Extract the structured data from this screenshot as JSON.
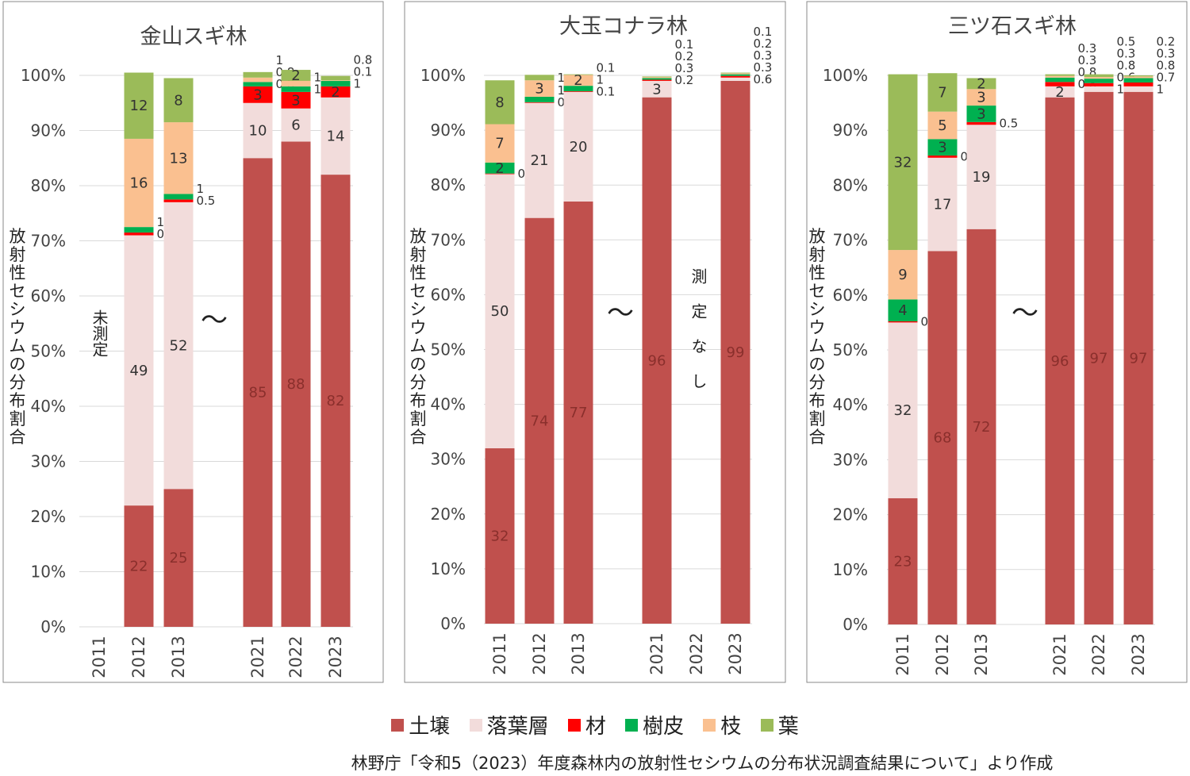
{
  "chart_data": [
    {
      "type": "bar",
      "stacked": true,
      "title": "金山スギ林",
      "ylabel": "放射性セシウムの分布割合",
      "ylim": [
        0,
        100
      ],
      "yticks": [
        "0%",
        "10%",
        "20%",
        "30%",
        "40%",
        "50%",
        "60%",
        "70%",
        "80%",
        "90%",
        "100%"
      ],
      "categories": [
        "2011",
        "2012",
        "2013",
        "2021",
        "2022",
        "2023"
      ],
      "gap_marker": "〜",
      "annotation": "未測定",
      "annotation_category": "2011",
      "series": [
        {
          "name": "土壌",
          "values": [
            null,
            22,
            25,
            85,
            88,
            82
          ]
        },
        {
          "name": "落葉層",
          "values": [
            null,
            49,
            52,
            10,
            6,
            14
          ]
        },
        {
          "name": "材",
          "values": [
            null,
            0.5,
            0.5,
            3,
            3,
            2
          ]
        },
        {
          "name": "樹皮",
          "values": [
            null,
            1,
            1,
            0.8,
            1,
            1
          ]
        },
        {
          "name": "枝",
          "values": [
            null,
            16,
            13,
            0.8,
            1,
            0.1
          ]
        },
        {
          "name": "葉",
          "values": [
            null,
            12,
            8,
            1,
            2,
            0.8
          ]
        }
      ]
    },
    {
      "type": "bar",
      "stacked": true,
      "title": "大玉コナラ林",
      "ylabel": "放射性セシウムの分布割合",
      "ylim": [
        0,
        100
      ],
      "yticks": [
        "0%",
        "10%",
        "20%",
        "30%",
        "40%",
        "50%",
        "60%",
        "70%",
        "80%",
        "90%",
        "100%"
      ],
      "categories": [
        "2011",
        "2012",
        "2013",
        "2021",
        "2022",
        "2023"
      ],
      "gap_marker": "〜",
      "annotation": "測定なし",
      "annotation_category": "2022",
      "series": [
        {
          "name": "土壌",
          "values": [
            32,
            74,
            77,
            96,
            null,
            99
          ]
        },
        {
          "name": "落葉層",
          "values": [
            50,
            21,
            20,
            3,
            null,
            0.6
          ]
        },
        {
          "name": "材",
          "values": [
            0.1,
            0.1,
            0.1,
            0.2,
            null,
            0.3
          ]
        },
        {
          "name": "樹皮",
          "values": [
            2,
            1,
            1,
            0.3,
            null,
            0.3
          ]
        },
        {
          "name": "枝",
          "values": [
            7,
            3,
            2,
            0.2,
            null,
            0.2
          ]
        },
        {
          "name": "葉",
          "values": [
            8,
            1,
            0.1,
            0.1,
            null,
            0.1
          ]
        }
      ]
    },
    {
      "type": "bar",
      "stacked": true,
      "title": "三ツ石スギ林",
      "ylabel": "放射性セシウムの分布割合",
      "ylim": [
        0,
        100
      ],
      "yticks": [
        "0%",
        "10%",
        "20%",
        "30%",
        "40%",
        "50%",
        "60%",
        "70%",
        "80%",
        "90%",
        "100%"
      ],
      "categories": [
        "2011",
        "2012",
        "2013",
        "2021",
        "2022",
        "2023"
      ],
      "gap_marker": "〜",
      "series": [
        {
          "name": "土壌",
          "values": [
            23,
            68,
            72,
            96,
            97,
            97
          ]
        },
        {
          "name": "落葉層",
          "values": [
            32,
            17,
            19,
            2,
            1,
            1
          ]
        },
        {
          "name": "材",
          "values": [
            0.2,
            0.4,
            0.5,
            0.8,
            0.6,
            0.7
          ]
        },
        {
          "name": "樹皮",
          "values": [
            4,
            3,
            3,
            0.8,
            0.8,
            0.8
          ]
        },
        {
          "name": "枝",
          "values": [
            9,
            5,
            3,
            0.3,
            0.3,
            0.3
          ]
        },
        {
          "name": "葉",
          "values": [
            32,
            7,
            2,
            0.3,
            0.5,
            0.2
          ]
        }
      ]
    }
  ],
  "colors": {
    "土壌": "#c0504d",
    "落葉層": "#f2dcdb",
    "材": "#ff0000",
    "樹皮": "#00b050",
    "枝": "#fac090",
    "葉": "#9bbb59"
  },
  "legend": [
    "土壌",
    "落葉層",
    "材",
    "樹皮",
    "枝",
    "葉"
  ],
  "source": "林野庁「令和5（2023）年度森林内の放射性セシウムの分布状況調査結果について」より作成"
}
